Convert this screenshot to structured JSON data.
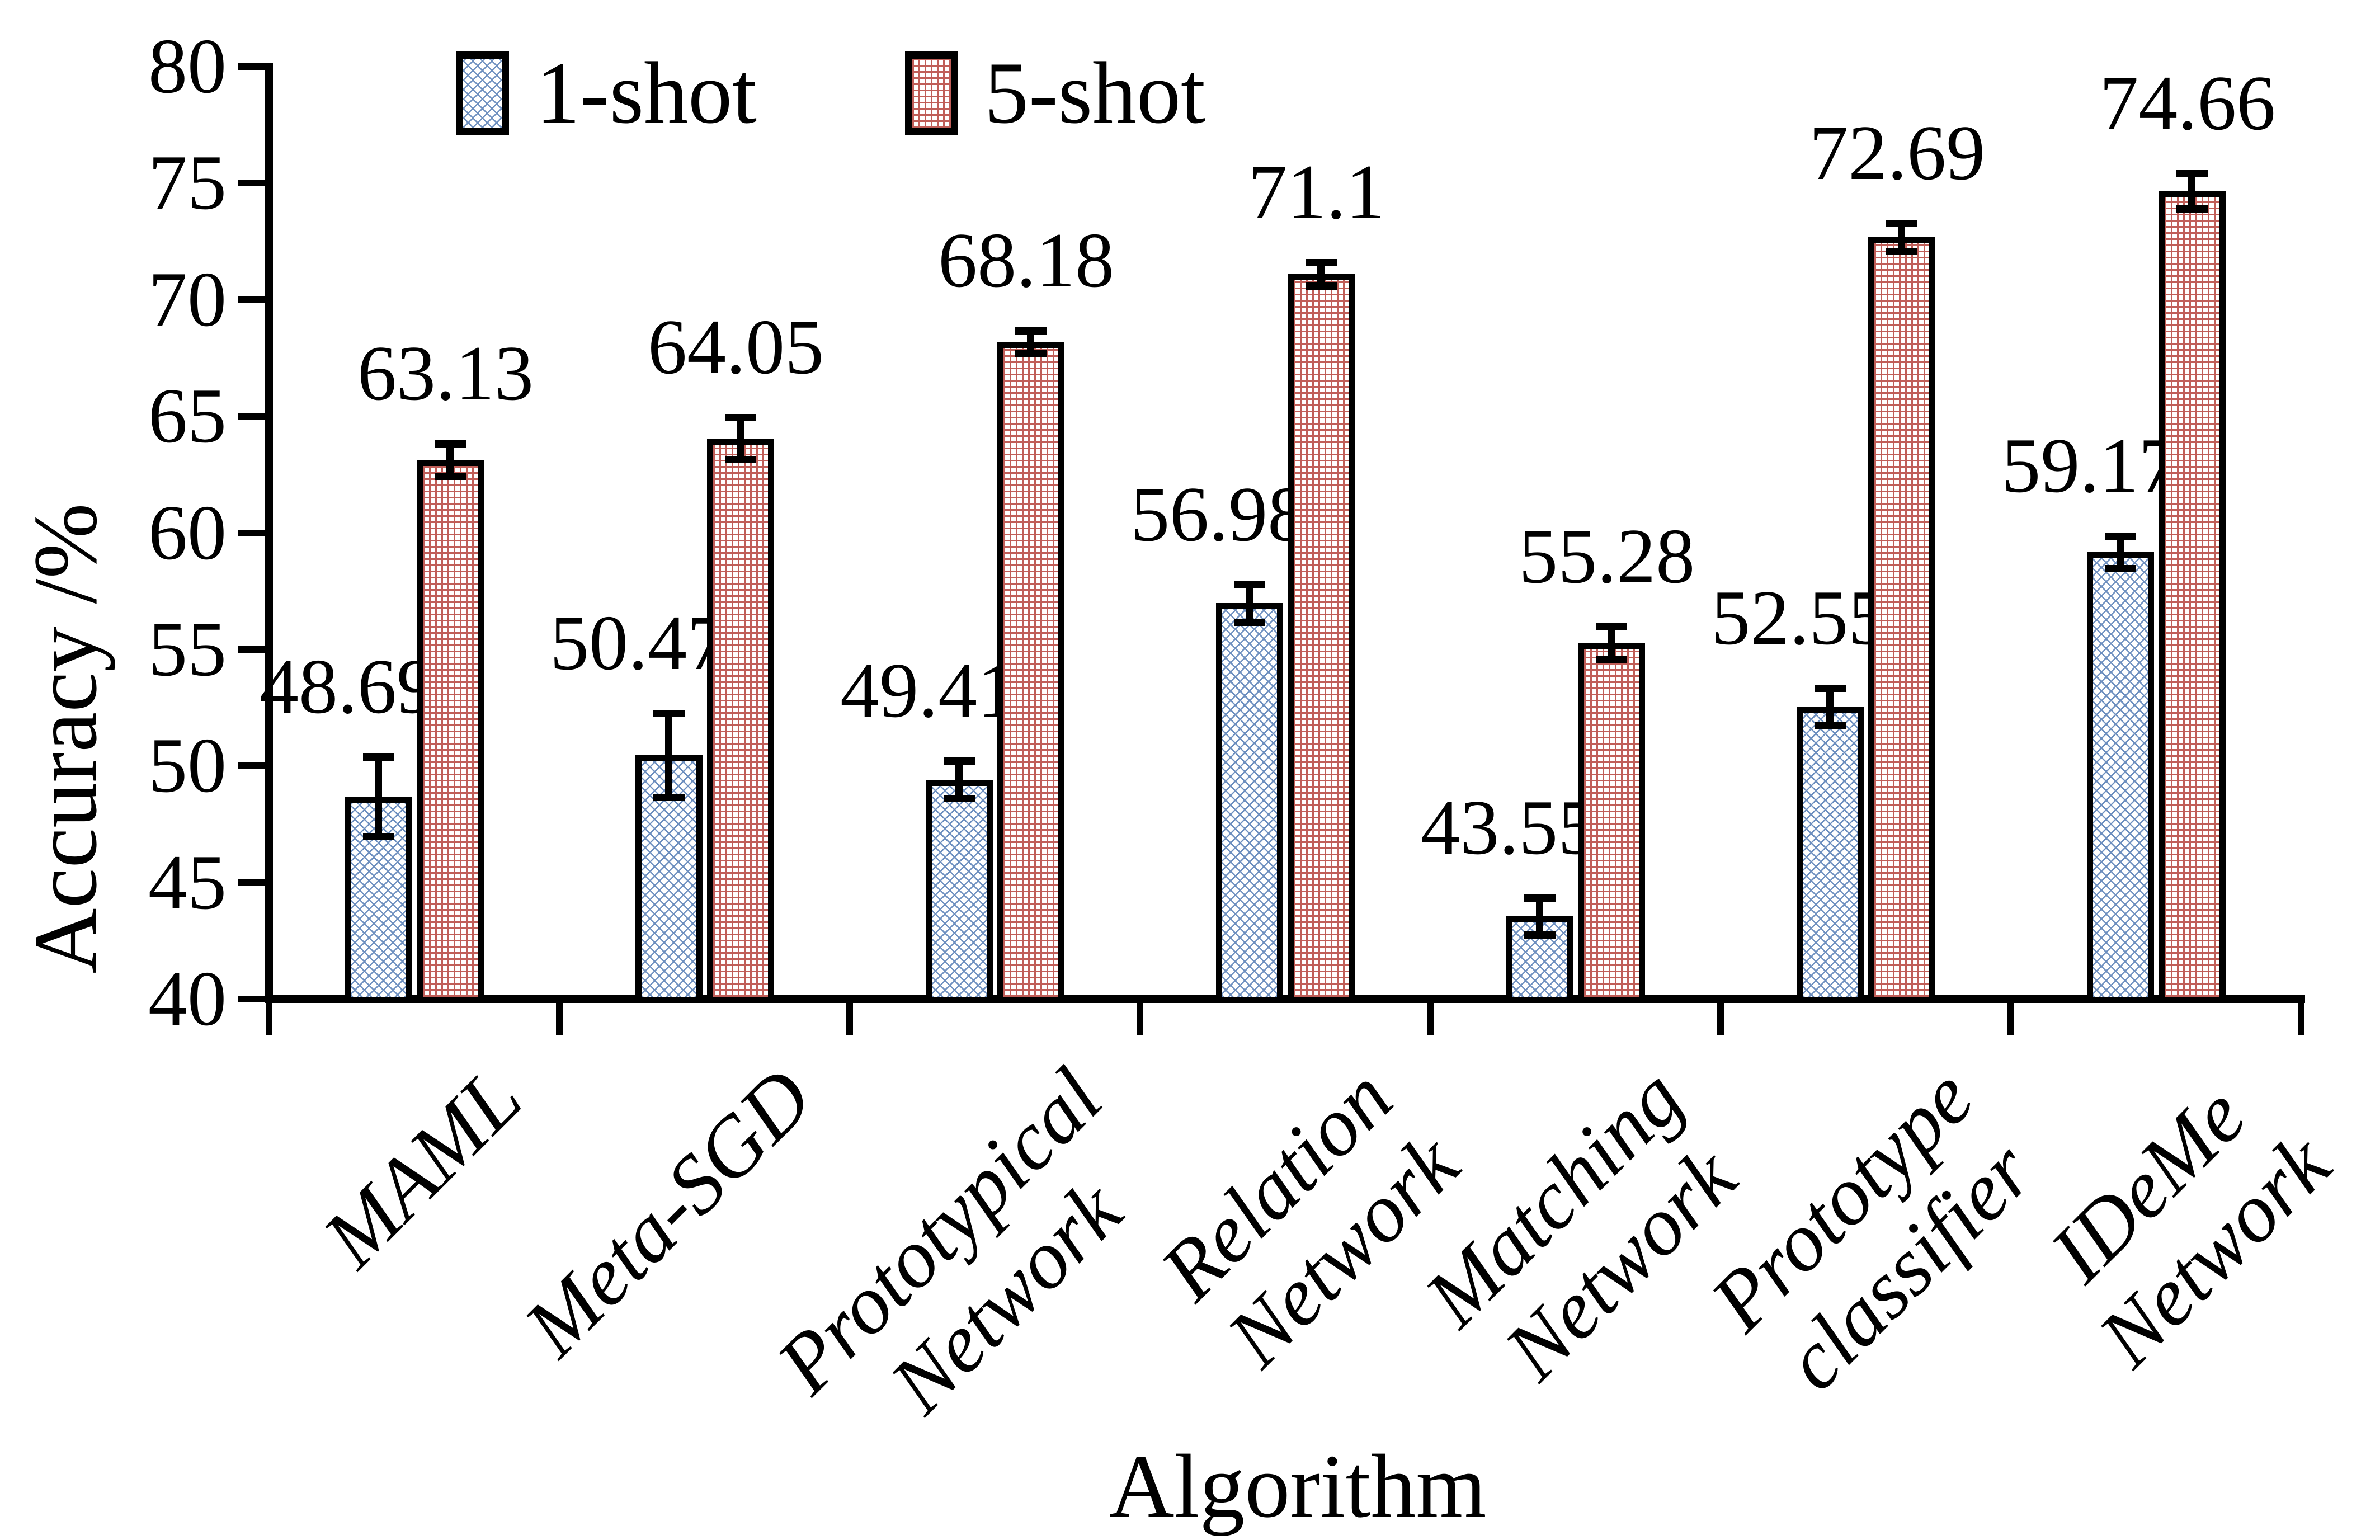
{
  "figure": {
    "legend": {
      "items": [
        {
          "label": "1-shot",
          "swatch": "blue-zigzag-pattern"
        },
        {
          "label": "5-shot",
          "swatch": "red-grid-pattern"
        }
      ]
    }
  },
  "chart_data": {
    "type": "bar",
    "title": "",
    "categories": [
      "MAML",
      "Meta-SGD",
      "Prototypical\nNetwork",
      "Relation\nNetwork",
      "Matching\nNetwork",
      "Prototype\nclassifier",
      "IDeMe\nNetwork"
    ],
    "series": [
      {
        "name": "1-shot",
        "pattern": "blue-zigzag",
        "pattern_color": "#6d8fbf",
        "values": [
          48.69,
          50.47,
          49.41,
          56.98,
          43.55,
          52.55,
          59.17
        ],
        "errors": [
          1.7,
          1.8,
          0.8,
          0.8,
          0.8,
          0.8,
          0.7
        ]
      },
      {
        "name": "5-shot",
        "pattern": "red-grid",
        "pattern_color": "#c05e58",
        "values": [
          63.13,
          64.05,
          68.18,
          71.1,
          55.28,
          72.69,
          74.66
        ],
        "errors": [
          0.7,
          0.9,
          0.5,
          0.5,
          0.7,
          0.6,
          0.75
        ]
      }
    ],
    "value_labels": [
      "48.69",
      "50.47",
      "49.41",
      "56.98",
      "43.55",
      "52.55",
      "59.17",
      "63.13",
      "64.05",
      "68.18",
      "71.1",
      "55.28",
      "72.69",
      "74.66"
    ],
    "xlabel": "Algorithm",
    "ylabel": "Accuracy /%",
    "ylim": [
      40,
      80
    ],
    "yticks": [
      40,
      45,
      50,
      55,
      60,
      65,
      70,
      75,
      80
    ],
    "grid": false,
    "error_bars": true,
    "legend_position": "inside-top-left",
    "colors": {
      "axis": "#000000",
      "text": "#000000",
      "series1_line": "#6d8fbf",
      "series2_line": "#c05e58",
      "bar_outline": "#000000"
    }
  }
}
